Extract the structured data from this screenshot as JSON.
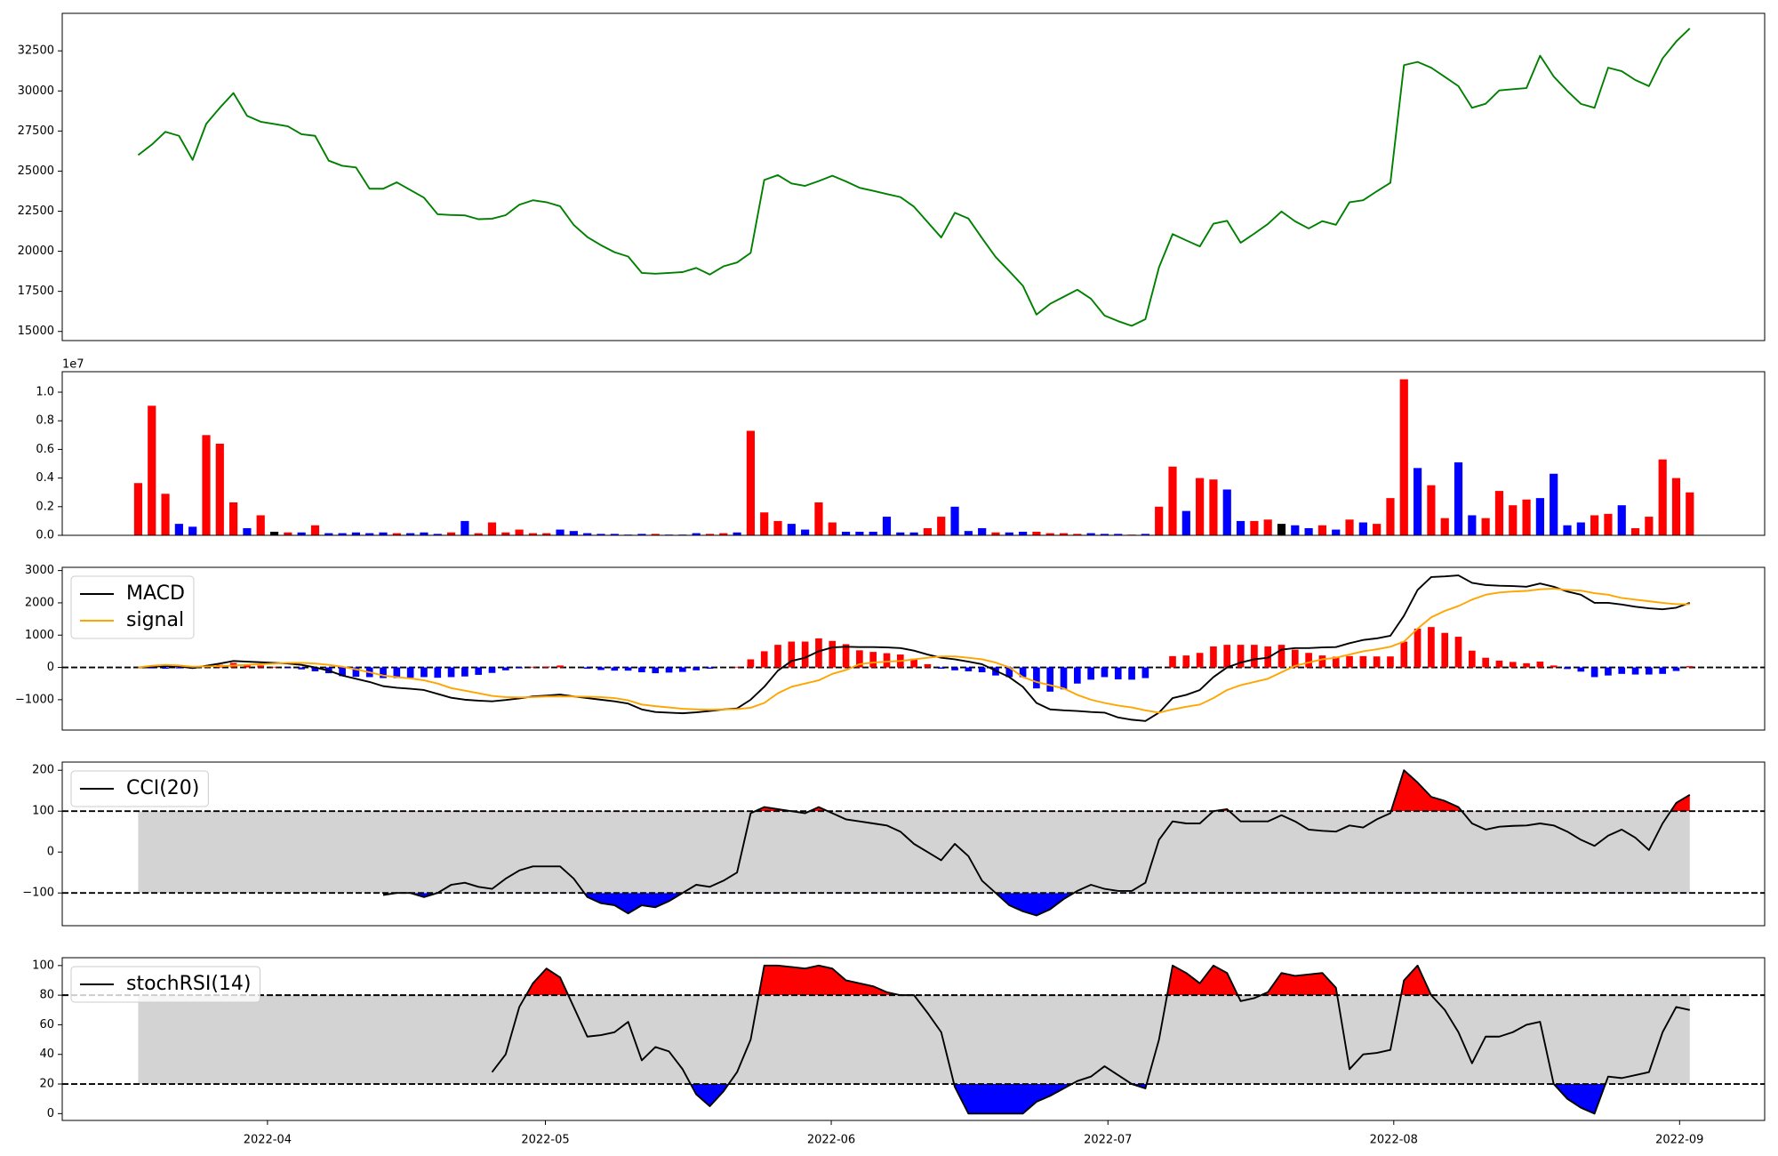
{
  "chart_data": [
    {
      "type": "line",
      "series": [
        {
          "color": "green",
          "values": [
            26000,
            26650,
            27450,
            27200,
            25700,
            27950,
            28950,
            29870,
            28450,
            28080,
            27940,
            27790,
            27300,
            27200,
            25650,
            25330,
            25230,
            23900,
            23900,
            24300,
            23820,
            23340,
            22310,
            22260,
            22240,
            22000,
            22030,
            22250,
            22900,
            23180,
            23060,
            22810,
            21640,
            20890,
            20380,
            19940,
            19670,
            18650,
            18600,
            18650,
            18700,
            18960,
            18550,
            19060,
            19300,
            19900,
            24450,
            24750,
            24230,
            24080,
            24380,
            24710,
            24360,
            23960,
            23770,
            23570,
            23380,
            22780,
            21820,
            20860,
            22400,
            22040,
            20820,
            19640,
            18760,
            17850,
            16050,
            16720,
            17160,
            17600,
            17040,
            15990,
            15640,
            15350,
            15760,
            19000,
            21070,
            20680,
            20300,
            21720,
            21900,
            20530,
            21100,
            21700,
            22480,
            21870,
            21420,
            21880,
            21650,
            23060,
            23180,
            23740,
            24270,
            31610,
            31810,
            31450,
            30880,
            30300,
            28950,
            29200,
            30030,
            30110,
            30180,
            32200,
            30900,
            30000,
            29190,
            28950,
            31450,
            31230,
            30680,
            30300,
            32030,
            33080,
            33900
          ]
        }
      ],
      "xlim": [
        -5.58,
        119.5
      ],
      "ylim": [
        14430,
        34840
      ],
      "yticks": [
        15000,
        17500,
        20000,
        22500,
        25000,
        27500,
        30000,
        32500
      ]
    },
    {
      "type": "bar",
      "values": [
        0.365,
        0.905,
        0.29,
        0.08,
        0.06,
        0.7,
        0.64,
        0.23,
        0.05,
        0.14,
        0.025,
        0.02,
        0.02,
        0.07,
        0.015,
        0.015,
        0.02,
        0.015,
        0.02,
        0.015,
        0.015,
        0.02,
        0.01,
        0.02,
        0.1,
        0.015,
        0.09,
        0.02,
        0.04,
        0.015,
        0.015,
        0.04,
        0.03,
        0.015,
        0.01,
        0.01,
        0.005,
        0.01,
        0.01,
        0.005,
        0.005,
        0.015,
        0.01,
        0.015,
        0.02,
        0.73,
        0.16,
        0.1,
        0.08,
        0.04,
        0.23,
        0.09,
        0.025,
        0.025,
        0.025,
        0.13,
        0.02,
        0.02,
        0.05,
        0.13,
        0.2,
        0.03,
        0.05,
        0.02,
        0.02,
        0.025,
        0.025,
        0.015,
        0.015,
        0.01,
        0.015,
        0.01,
        0.01,
        0.005,
        0.01,
        0.2,
        0.48,
        0.17,
        0.4,
        0.39,
        0.32,
        0.1,
        0.1,
        0.11,
        0.08,
        0.07,
        0.05,
        0.07,
        0.04,
        0.11,
        0.09,
        0.08,
        0.26,
        1.09,
        0.47,
        0.35,
        0.12,
        0.51,
        0.14,
        0.12,
        0.31,
        0.21,
        0.25,
        0.26,
        0.43,
        0.07,
        0.09,
        0.14,
        0.15,
        0.21,
        0.05,
        0.13,
        0.53,
        0.4,
        0.3
      ],
      "colors": [
        "red",
        "red",
        "red",
        "blue",
        "blue",
        "red",
        "red",
        "red",
        "blue",
        "red",
        "black",
        "red",
        "blue",
        "red",
        "blue",
        "blue",
        "blue",
        "blue",
        "blue",
        "red",
        "blue",
        "blue",
        "blue",
        "red",
        "blue",
        "red",
        "red",
        "red",
        "red",
        "red",
        "red",
        "blue",
        "blue",
        "blue",
        "blue",
        "blue",
        "blue",
        "blue",
        "red",
        "blue",
        "blue",
        "blue",
        "red",
        "red",
        "blue",
        "red",
        "red",
        "red",
        "blue",
        "blue",
        "red",
        "red",
        "blue",
        "blue",
        "blue",
        "blue",
        "blue",
        "blue",
        "red",
        "red",
        "blue",
        "blue",
        "blue",
        "red",
        "blue",
        "blue",
        "red",
        "red",
        "red",
        "red",
        "blue",
        "blue",
        "blue",
        "red",
        "blue",
        "red",
        "red",
        "blue",
        "red",
        "red",
        "blue",
        "blue",
        "red",
        "red",
        "black",
        "blue",
        "blue",
        "red",
        "blue",
        "red",
        "blue",
        "red",
        "red",
        "red",
        "blue",
        "red",
        "red",
        "blue",
        "blue",
        "red",
        "red",
        "red",
        "red",
        "blue",
        "blue",
        "blue",
        "blue",
        "red",
        "red",
        "blue",
        "red",
        "red",
        "red",
        "red",
        "red"
      ],
      "offset_label": "1e7",
      "xlim": [
        -5.58,
        119.5
      ],
      "ylim": [
        0,
        1.143
      ],
      "yticks": [
        {
          "value": 0,
          "label": "0.0"
        },
        0.2,
        0.4,
        0.6,
        0.8,
        {
          "value": 1,
          "label": "1.0"
        }
      ]
    },
    {
      "type": "line",
      "series": [
        {
          "name": "MACD",
          "color": "black",
          "values": [
            0,
            20,
            40,
            30,
            -20,
            50,
            120,
            200,
            180,
            160,
            140,
            120,
            80,
            0,
            -100,
            -250,
            -350,
            -450,
            -580,
            -630,
            -660,
            -700,
            -820,
            -940,
            -1000,
            -1030,
            -1050,
            -1010,
            -960,
            -900,
            -870,
            -840,
            -900,
            -950,
            -1000,
            -1050,
            -1120,
            -1300,
            -1380,
            -1400,
            -1420,
            -1390,
            -1350,
            -1300,
            -1270,
            -1000,
            -600,
            -100,
            200,
            300,
            500,
            620,
            640,
            630,
            630,
            620,
            600,
            520,
            400,
            300,
            250,
            180,
            100,
            -100,
            -300,
            -600,
            -1100,
            -1300,
            -1330,
            -1350,
            -1380,
            -1400,
            -1550,
            -1620,
            -1660,
            -1400,
            -950,
            -850,
            -700,
            -300,
            0,
            150,
            250,
            300,
            550,
            600,
            600,
            620,
            630,
            750,
            850,
            900,
            980,
            1600,
            2400,
            2800,
            2820,
            2850,
            2620,
            2550,
            2530,
            2520,
            2500,
            2600,
            2500,
            2350,
            2250,
            2000,
            2000,
            1950,
            1880,
            1830,
            1800,
            1850,
            2000
          ]
        },
        {
          "name": "signal",
          "color": "orange",
          "values": [
            0,
            50,
            80,
            60,
            20,
            30,
            40,
            60,
            80,
            100,
            120,
            140,
            140,
            120,
            80,
            20,
            -60,
            -150,
            -250,
            -300,
            -340,
            -400,
            -500,
            -640,
            -720,
            -800,
            -880,
            -920,
            -930,
            -920,
            -900,
            -900,
            -900,
            -910,
            -920,
            -950,
            -1020,
            -1150,
            -1200,
            -1240,
            -1280,
            -1300,
            -1310,
            -1300,
            -1290,
            -1250,
            -1100,
            -800,
            -600,
            -500,
            -400,
            -200,
            -80,
            100,
            150,
            180,
            200,
            250,
            300,
            340,
            340,
            300,
            250,
            150,
            0,
            -300,
            -450,
            -550,
            -650,
            -850,
            -1000,
            -1100,
            -1180,
            -1240,
            -1330,
            -1400,
            -1300,
            -1220,
            -1150,
            -950,
            -700,
            -550,
            -450,
            -350,
            -150,
            50,
            150,
            250,
            300,
            400,
            500,
            560,
            640,
            800,
            1200,
            1550,
            1750,
            1900,
            2100,
            2250,
            2320,
            2350,
            2370,
            2420,
            2440,
            2400,
            2380,
            2300,
            2250,
            2150,
            2100,
            2050,
            2000,
            1960,
            1960
          ]
        }
      ],
      "histogram": {
        "positive_color": "red",
        "negative_color": "blue",
        "values": [
          0,
          -30,
          -40,
          -30,
          -40,
          20,
          80,
          140,
          100,
          60,
          20,
          -20,
          -60,
          -120,
          -180,
          -270,
          -290,
          -300,
          -330,
          -330,
          -320,
          -300,
          -320,
          -300,
          -280,
          -230,
          -170,
          -90,
          -30,
          20,
          30,
          60,
          0,
          -40,
          -80,
          -100,
          -100,
          -150,
          -180,
          -160,
          -140,
          -90,
          -40,
          0,
          20,
          250,
          500,
          700,
          800,
          800,
          900,
          820,
          720,
          530,
          480,
          440,
          400,
          270,
          100,
          -40,
          -90,
          -120,
          -150,
          -250,
          -300,
          -300,
          -650,
          -750,
          -680,
          -500,
          -380,
          -300,
          -370,
          -380,
          -330,
          0,
          350,
          370,
          450,
          650,
          700,
          700,
          700,
          650,
          700,
          550,
          450,
          370,
          330,
          350,
          350,
          340,
          340,
          800,
          1200,
          1250,
          1070,
          950,
          520,
          300,
          210,
          170,
          130,
          180,
          60,
          -50,
          -130,
          -300,
          -250,
          -200,
          -220,
          -220,
          -200,
          -110,
          40
        ]
      },
      "hline": 0,
      "legend": "upper left",
      "xlim": [
        -5.58,
        119.5
      ],
      "ylim": [
        -1940,
        3100
      ],
      "yticks": [
        {
          "value": -1000,
          "label": "−1000"
        },
        0,
        1000,
        2000,
        3000
      ]
    },
    {
      "type": "line",
      "series": [
        {
          "name": "CCI(20)",
          "color": "black",
          "values": [
            null,
            null,
            null,
            null,
            null,
            null,
            null,
            null,
            null,
            null,
            null,
            null,
            null,
            null,
            null,
            null,
            null,
            null,
            -105,
            -100,
            -100,
            -110,
            -100,
            -80,
            -75,
            -85,
            -90,
            -65,
            -45,
            -35,
            -35,
            -35,
            -65,
            -110,
            -125,
            -130,
            -150,
            -130,
            -135,
            -120,
            -100,
            -80,
            -85,
            -70,
            -50,
            95,
            110,
            105,
            100,
            95,
            110,
            95,
            80,
            75,
            70,
            65,
            50,
            20,
            0,
            -20,
            20,
            -10,
            -70,
            -100,
            -130,
            -145,
            -155,
            -140,
            -115,
            -95,
            -80,
            -90,
            -95,
            -95,
            -75,
            30,
            75,
            70,
            70,
            100,
            105,
            75,
            75,
            75,
            90,
            75,
            55,
            52,
            50,
            65,
            60,
            80,
            95,
            200,
            170,
            135,
            125,
            110,
            70,
            55,
            62,
            64,
            65,
            70,
            65,
            50,
            30,
            15,
            40,
            55,
            35,
            5,
            70,
            120,
            140
          ]
        }
      ],
      "bands": [
        -100,
        100
      ],
      "band_color": "lightgray",
      "above_color": "red",
      "below_color": "blue",
      "legend": "upper left",
      "xlim": [
        -5.58,
        119.5
      ],
      "ylim": [
        -180,
        220
      ],
      "yticks": [
        {
          "value": -100,
          "label": "−100"
        },
        0,
        100,
        200
      ]
    },
    {
      "type": "line",
      "series": [
        {
          "name": "stochRSI(14)",
          "color": "black",
          "values": [
            null,
            null,
            null,
            null,
            null,
            null,
            null,
            null,
            null,
            null,
            null,
            null,
            null,
            null,
            null,
            null,
            null,
            null,
            null,
            null,
            null,
            null,
            null,
            null,
            null,
            null,
            28,
            40,
            72,
            88,
            98,
            92,
            72,
            52,
            53,
            55,
            62,
            36,
            45,
            42,
            30,
            13,
            5,
            15,
            28,
            50,
            100,
            100,
            99,
            98,
            100,
            98,
            90,
            88,
            86,
            82,
            80,
            80,
            68,
            55,
            18,
            0,
            0,
            0,
            0,
            0,
            8,
            12,
            17,
            22,
            25,
            32,
            26,
            20,
            17,
            50,
            100,
            95,
            88,
            100,
            95,
            76,
            78,
            82,
            95,
            93,
            94,
            95,
            85,
            30,
            40,
            41,
            43,
            90,
            100,
            80,
            70,
            55,
            34,
            52,
            52,
            55,
            60,
            62,
            20,
            10,
            4,
            0,
            25,
            24,
            26,
            28,
            55,
            72,
            70
          ]
        }
      ],
      "bands": [
        20,
        80
      ],
      "band_color": "lightgray",
      "above_color": "red",
      "below_color": "blue",
      "legend": "upper left",
      "xlim": [
        -5.58,
        119.5
      ],
      "ylim": [
        -4.6,
        105.3
      ],
      "yticks": [
        0,
        20,
        40,
        60,
        80,
        100
      ],
      "xticks": [
        {
          "value": 9.5,
          "label": "2022-04"
        },
        {
          "value": 29.92,
          "label": "2022-05"
        },
        {
          "value": 50.92,
          "label": "2022-06"
        },
        {
          "value": 71.25,
          "label": "2022-07"
        },
        {
          "value": 92.25,
          "label": "2022-08"
        },
        {
          "value": 113.25,
          "label": "2022-09"
        }
      ]
    }
  ]
}
